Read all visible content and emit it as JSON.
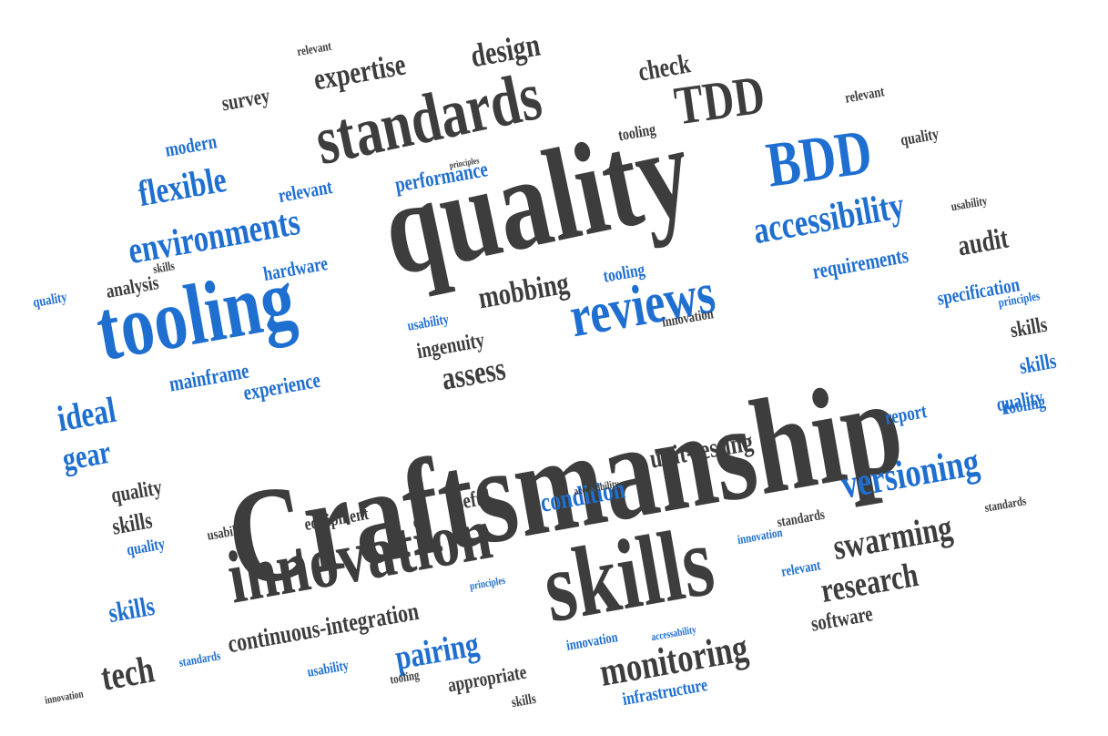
{
  "colors": {
    "dark": "#3d3d3d",
    "blue": "#1f6fd1",
    "background": "#ffffff"
  },
  "words": [
    {
      "text": "Craftsmanship",
      "color": "dark"
    },
    {
      "text": "quality",
      "color": "dark"
    },
    {
      "text": "skills",
      "color": "dark"
    },
    {
      "text": "innovation",
      "color": "dark"
    },
    {
      "text": "tooling",
      "color": "blue"
    },
    {
      "text": "standards",
      "color": "dark"
    },
    {
      "text": "TDD",
      "color": "dark"
    },
    {
      "text": "BDD",
      "color": "blue"
    },
    {
      "text": "reviews",
      "color": "blue"
    },
    {
      "text": "accessibility",
      "color": "blue"
    },
    {
      "text": "environments",
      "color": "blue"
    },
    {
      "text": "flexible",
      "color": "blue"
    },
    {
      "text": "versioning",
      "color": "blue"
    },
    {
      "text": "monitoring",
      "color": "dark"
    },
    {
      "text": "swarming",
      "color": "dark"
    },
    {
      "text": "research",
      "color": "dark"
    },
    {
      "text": "continuous-integration",
      "color": "dark"
    },
    {
      "text": "pairing",
      "color": "blue"
    },
    {
      "text": "tech",
      "color": "dark"
    },
    {
      "text": "unit-testing",
      "color": "dark"
    },
    {
      "text": "condition",
      "color": "blue"
    },
    {
      "text": "mobbing",
      "color": "dark"
    },
    {
      "text": "assess",
      "color": "dark"
    },
    {
      "text": "ingenuity",
      "color": "dark"
    },
    {
      "text": "expertise",
      "color": "dark"
    },
    {
      "text": "design",
      "color": "dark"
    },
    {
      "text": "check",
      "color": "dark"
    },
    {
      "text": "performance",
      "color": "blue"
    },
    {
      "text": "requirements",
      "color": "blue"
    },
    {
      "text": "specification",
      "color": "blue"
    },
    {
      "text": "audit",
      "color": "dark"
    },
    {
      "text": "ideal",
      "color": "blue"
    },
    {
      "text": "gear",
      "color": "blue"
    },
    {
      "text": "mainframe",
      "color": "blue"
    },
    {
      "text": "experience",
      "color": "blue"
    },
    {
      "text": "hardware",
      "color": "blue"
    },
    {
      "text": "analysis",
      "color": "dark"
    },
    {
      "text": "modern",
      "color": "blue"
    },
    {
      "text": "survey",
      "color": "dark"
    },
    {
      "text": "relevant",
      "color": "blue"
    },
    {
      "text": "report",
      "color": "blue"
    },
    {
      "text": "useful",
      "color": "dark"
    },
    {
      "text": "equipment",
      "color": "dark"
    },
    {
      "text": "software",
      "color": "dark"
    },
    {
      "text": "infrastructure",
      "color": "blue"
    },
    {
      "text": "appropriate",
      "color": "dark"
    },
    {
      "text": "usability",
      "color": "dark"
    },
    {
      "text": "principles",
      "color": "blue"
    },
    {
      "text": "accessability",
      "color": "dark"
    },
    {
      "text": "innovation",
      "color": "blue"
    },
    {
      "text": "skills",
      "color": "blue"
    },
    {
      "text": "quality",
      "color": "blue"
    },
    {
      "text": "tooling",
      "color": "dark"
    },
    {
      "text": "standards",
      "color": "blue"
    },
    {
      "text": "relevant",
      "color": "dark"
    },
    {
      "text": "usability",
      "color": "blue"
    },
    {
      "text": "skills",
      "color": "dark"
    },
    {
      "text": "quality",
      "color": "dark"
    },
    {
      "text": "innovation",
      "color": "dark"
    },
    {
      "text": "principles",
      "color": "dark"
    },
    {
      "text": "tooling",
      "color": "blue"
    },
    {
      "text": "quality",
      "color": "blue"
    },
    {
      "text": "skills",
      "color": "dark"
    },
    {
      "text": "usability",
      "color": "blue"
    },
    {
      "text": "standards",
      "color": "dark"
    },
    {
      "text": "relevant",
      "color": "blue"
    },
    {
      "text": "tooling",
      "color": "dark"
    },
    {
      "text": "skills",
      "color": "blue"
    },
    {
      "text": "quality",
      "color": "blue"
    },
    {
      "text": "principles",
      "color": "blue"
    },
    {
      "text": "innovation",
      "color": "dark"
    },
    {
      "text": "accessability",
      "color": "blue"
    },
    {
      "text": "skills",
      "color": "dark"
    },
    {
      "text": "usability",
      "color": "dark"
    },
    {
      "text": "quality",
      "color": "dark"
    },
    {
      "text": "relevant",
      "color": "dark"
    },
    {
      "text": "tooling",
      "color": "blue"
    },
    {
      "text": "standards",
      "color": "dark"
    },
    {
      "text": "innovation",
      "color": "blue"
    },
    {
      "text": "skills",
      "color": "dark"
    }
  ]
}
